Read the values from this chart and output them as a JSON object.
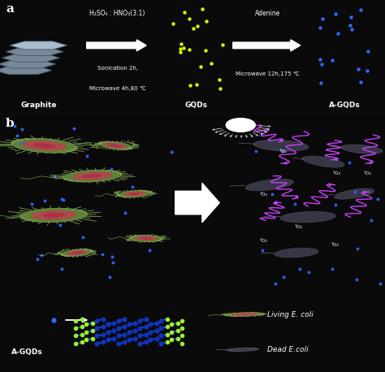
{
  "bg_color": "#0a0a0a",
  "panel_a_bg": "#111111",
  "panel_b_bg": "#050510",
  "panel_c_bg": "#060608",
  "gqd_color": "#ccff00",
  "agqd_color": "#3366ff",
  "purple": "#bb44ee",
  "panel_a_label": "a",
  "panel_b_label": "b",
  "label_graphite": "Graphite",
  "label_gqds": "GQDs",
  "label_agqds": "A-GQDs",
  "arrow1_text1": "H₂SO₄ : HNO₃(3:1)",
  "arrow1_text2": "Sonication 2h,",
  "arrow1_text3": "Microwave 4h,80 ℃",
  "arrow2_text1": "Adenine",
  "arrow2_text2": "Microwave 12h,175 ℃",
  "o2_label": "¹O₂",
  "living_label": "Living E. coli",
  "dead_label": "Dead E.coli",
  "agqds_legend": "A-GQDs"
}
